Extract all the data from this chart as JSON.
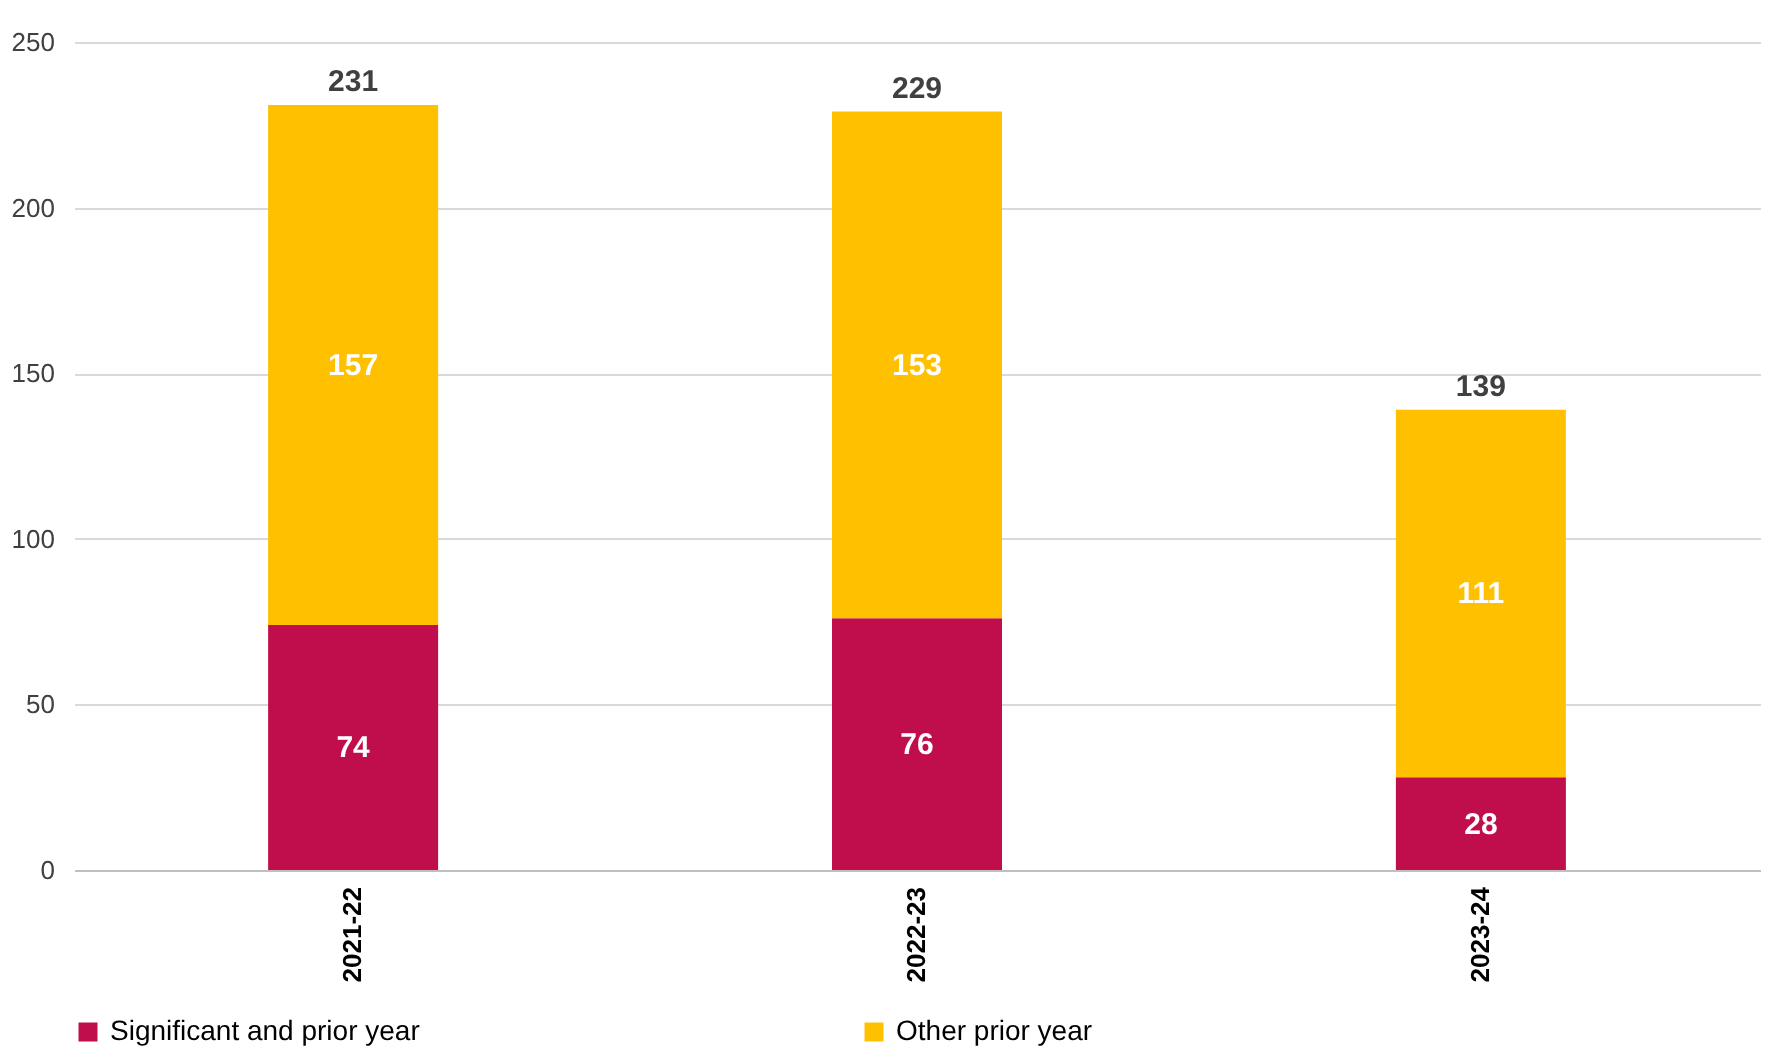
{
  "chart_data": {
    "type": "bar",
    "stacked": true,
    "categories": [
      "2021-22",
      "2022-23",
      "2023-24"
    ],
    "series": [
      {
        "name": "Significant and prior year",
        "color": "#c00d4b",
        "values": [
          74,
          76,
          28
        ]
      },
      {
        "name": "Other prior year",
        "color": "#ffc000",
        "values": [
          157,
          153,
          111
        ]
      }
    ],
    "ylim": [
      0,
      250
    ],
    "yticks": [
      0,
      50,
      100,
      150,
      200,
      250
    ],
    "grid": "y",
    "legend": "bottom",
    "data_labels": true,
    "totals": [
      "231",
      "229",
      "139"
    ]
  }
}
